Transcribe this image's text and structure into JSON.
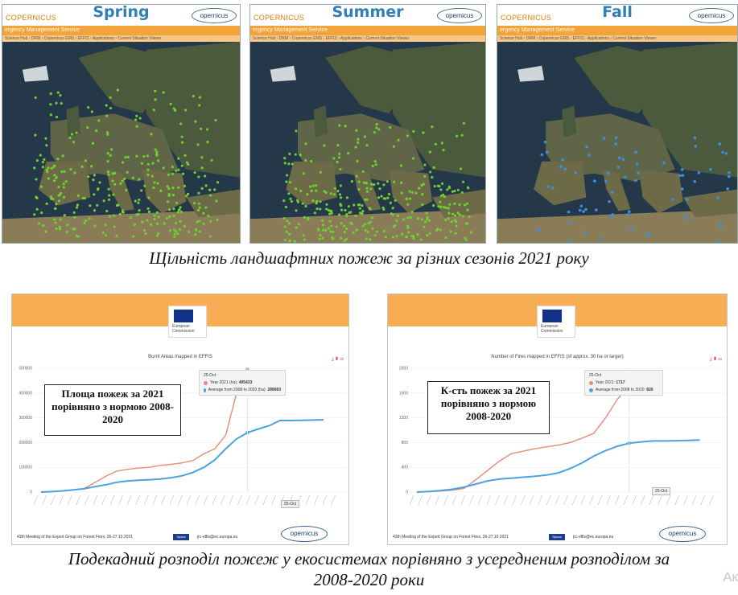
{
  "maps": [
    {
      "season": "Spring",
      "brand": "COPERNICUS",
      "logo": "opernicus",
      "service": "ergency Management Service",
      "crumb": "Science Hub › DRM › Copernicus EMS › EFFIS › Applications › Current Situation Viewer",
      "dot_color": "#6fd131",
      "density": "high-all"
    },
    {
      "season": "Summer",
      "brand": "COPERNICUS",
      "logo": "opernicus",
      "service": "ergency Management Service",
      "crumb": "Science Hub › DRM › Copernicus EMS › EFFIS › Applications › Current Situation Viewer",
      "dot_color": "#6fd131",
      "density": "high-south"
    },
    {
      "season": "Fall",
      "brand": "COPERNICUS",
      "logo": "opernicus",
      "service": "ergency Management Service",
      "crumb": "Science Hub › DRM › Copernicus EMS › EFFIS › Applications › Current Situation Viewer",
      "dot_color": "#3b8fe0",
      "density": "low"
    }
  ],
  "caption_top": "Щільність ландшафтних пожеж за різних сезонів 2021 року",
  "charts": [
    {
      "chart_data": {
        "type": "line",
        "title": "Burnt Areas mapped in EFFIS",
        "ylim": [
          0,
          500000
        ],
        "yticks": [
          "0",
          "100000",
          "200000",
          "300000",
          "400000",
          "500000"
        ],
        "series": [
          {
            "name": "Year 2021 (ha)",
            "color": "#e98a78",
            "values": [
              0,
              2000,
              5000,
              9000,
              15000,
              40000,
              65000,
              85000,
              92000,
              97000,
              100000,
              108000,
              112000,
              118000,
              128000,
              155000,
              175000,
              230000,
              400000,
              495433
            ]
          },
          {
            "name": "Average from 2008 to 2020 (ha)",
            "color": "#4aa3df",
            "values": [
              0,
              2000,
              5000,
              9000,
              14000,
              22000,
              30000,
              40000,
              45000,
              48000,
              50000,
              53000,
              58000,
              66000,
              80000,
              100000,
              130000,
              175000,
              215000,
              240000,
              255000,
              268000,
              289083,
              289083,
              290000,
              291000,
              292000
            ]
          }
        ],
        "marker_label": "25-Oct"
      },
      "tooltip": {
        "date": "25-Oct",
        "row1_label": "Year 2021 (ha):",
        "row1_value": "495433",
        "row2_label": "Average from 2008 to 2020 (ha):",
        "row2_value": "289083"
      },
      "annotation": "Площа пожеж за 2021 порівняно з нормою 2008-2020"
    },
    {
      "chart_data": {
        "type": "line",
        "title": "Number of Fires mapped in EFFIS (of approx. 30 ha or larger)",
        "ylim": [
          0,
          2000
        ],
        "yticks": [
          "0",
          "400",
          "800",
          "1200",
          "1600",
          "2000"
        ],
        "series": [
          {
            "name": "Year 2021",
            "color": "#e98a78",
            "values": [
              0,
              5,
              15,
              30,
              60,
              200,
              350,
              500,
              620,
              660,
              700,
              730,
              760,
              800,
              870,
              950,
              1200,
              1500,
              1717
            ]
          },
          {
            "name": "Average from 2008 to 2020",
            "color": "#4aa3df",
            "values": [
              0,
              10,
              25,
              45,
              80,
              130,
              180,
              210,
              225,
              240,
              255,
              275,
              310,
              380,
              470,
              580,
              670,
              740,
              790,
              810,
              826,
              826,
              830,
              835,
              840
            ]
          }
        ],
        "marker_label": "25-Oct"
      },
      "tooltip": {
        "date": "25-Oct",
        "row1_label": "Year 2021:",
        "row1_value": "1717",
        "row2_label": "Average from 2008 to 2020:",
        "row2_value": "826"
      },
      "annotation": "К-сть пожеж за 2021 порівняно з нормою 2008-2020"
    }
  ],
  "footer": {
    "meeting": "43th Meeting of the Expert Group on Forest Fires, 26-27.10.2021",
    "space": "Space",
    "email": "jrc-effis@ec.europa.eu",
    "logo": "opernicus"
  },
  "eu_label": "European Commission",
  "caption_bottom_1": "Подекадний розподіл пожеж у екосистемах порівняно з усередненим розподілом за",
  "caption_bottom_2": "2008-2020 роки",
  "activate_mark": "Ак"
}
